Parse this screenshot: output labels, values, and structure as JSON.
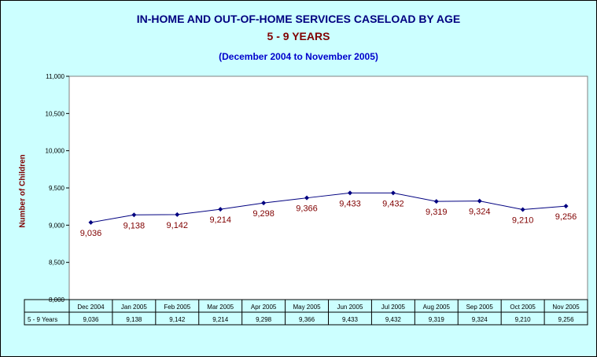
{
  "titles": {
    "line1": "IN-HOME AND OUT-OF-HOME SERVICES CASELOAD BY AGE",
    "line2": "5 - 9 YEARS",
    "line3": "(December 2004 to November 2005)"
  },
  "colors": {
    "background": "#ccffff",
    "plot_area": "#ffffff",
    "line": "#000080",
    "data_label": "#800000",
    "title_primary": "#000080",
    "title_secondary": "#800000",
    "title_range": "#0000cc"
  },
  "chart_data": {
    "type": "line",
    "title": "IN-HOME AND OUT-OF-HOME SERVICES CASELOAD BY AGE",
    "subtitle": "5 - 9 YEARS",
    "xlabel": "",
    "ylabel": "Number of Children",
    "ylim": [
      8000,
      11000
    ],
    "yticks": [
      8000,
      8500,
      9000,
      9500,
      10000,
      10500,
      11000
    ],
    "ytick_labels": [
      "8,000",
      "8,500",
      "9,000",
      "9,500",
      "10,000",
      "10,500",
      "11,000"
    ],
    "grid": false,
    "legend": "none",
    "categories": [
      "Dec 2004",
      "Jan 2005",
      "Feb 2005",
      "Mar 2005",
      "Apr 2005",
      "May 2005",
      "Jun 2005",
      "Jul 2005",
      "Aug 2005",
      "Sep 2005",
      "Oct 2005",
      "Nov 2005"
    ],
    "series": [
      {
        "name": "5 - 9 Years",
        "values": [
          9036,
          9138,
          9142,
          9214,
          9298,
          9366,
          9433,
          9432,
          9319,
          9324,
          9210,
          9256
        ],
        "labels": [
          "9,036",
          "9,138",
          "9,142",
          "9,214",
          "9,298",
          "9,366",
          "9,433",
          "9,432",
          "9,319",
          "9,324",
          "9,210",
          "9,256"
        ]
      }
    ],
    "data_table": true
  }
}
